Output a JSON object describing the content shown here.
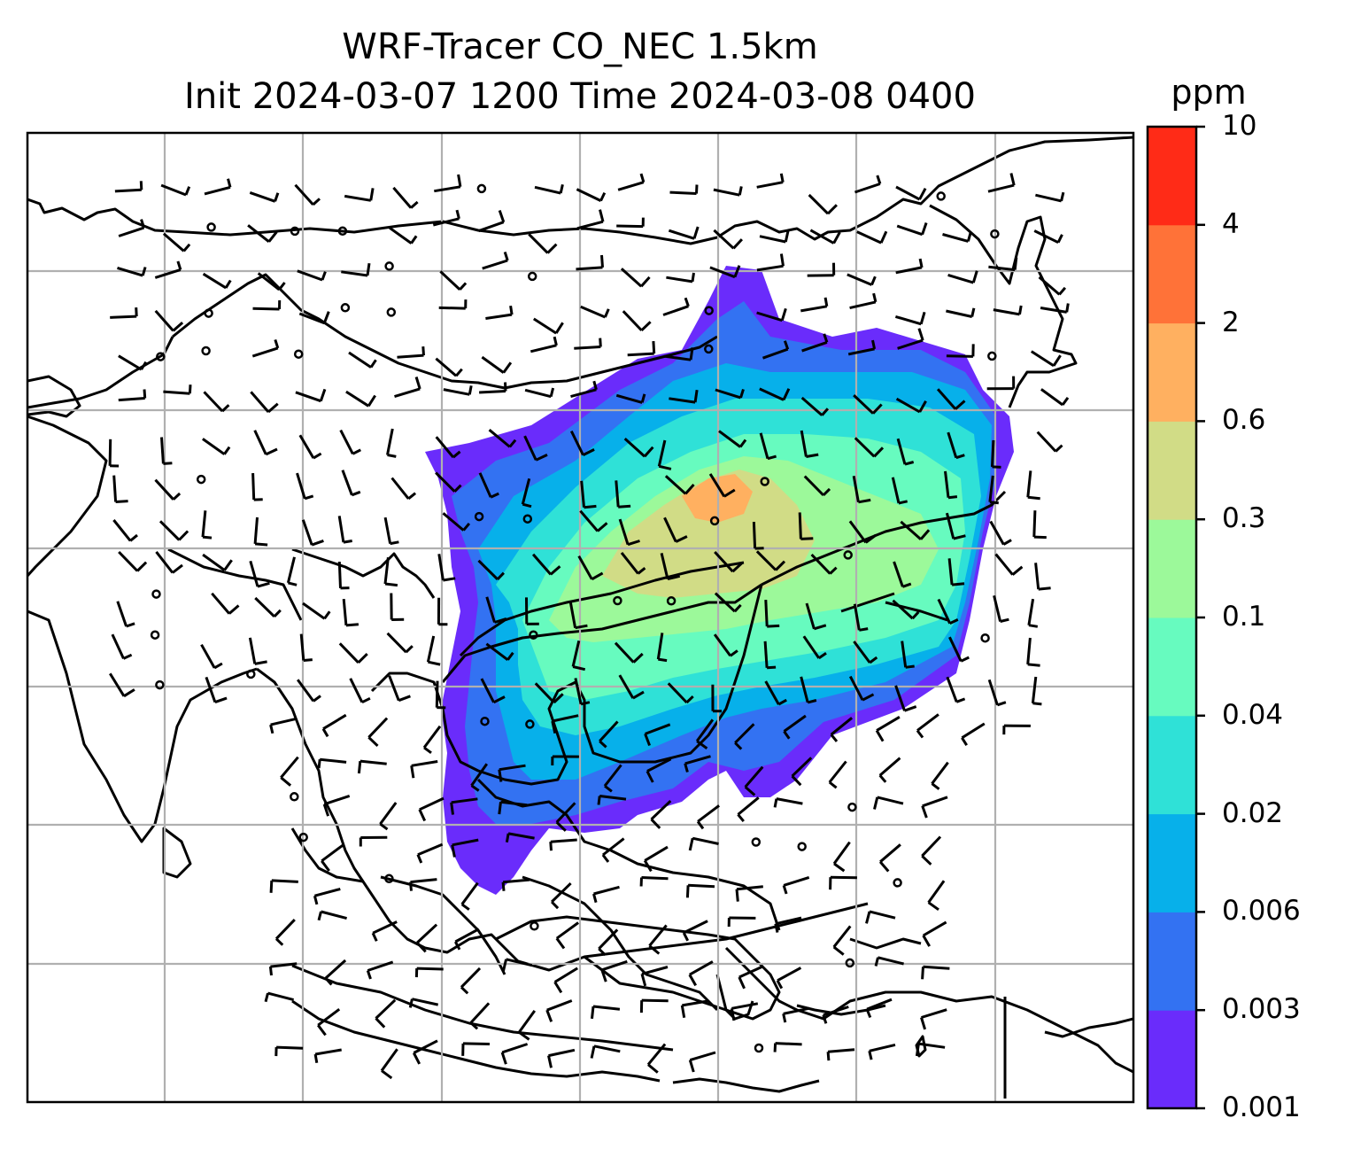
{
  "title": {
    "line1": "WRF-Tracer CO_NEC 1.5km",
    "line2": "Init 2024-03-07 1200 Time 2024-03-08 0400"
  },
  "colorbar": {
    "unit": "ppm",
    "ticks": [
      "0.001",
      "0.003",
      "0.006",
      "0.02",
      "0.04",
      "0.1",
      "0.3",
      "0.6",
      "2",
      "4",
      "10"
    ],
    "colors": [
      "#6a2cfb",
      "#3372f2",
      "#07b0ea",
      "#2fe1d7",
      "#67fbbf",
      "#9cf99a",
      "#d1dc86",
      "#ffb060",
      "#ff7238",
      "#ff2b17"
    ]
  },
  "map": {
    "gridlines": true,
    "coastline_color": "#000000",
    "grid_color": "#b0b0b0",
    "wind_barbs": true
  }
}
